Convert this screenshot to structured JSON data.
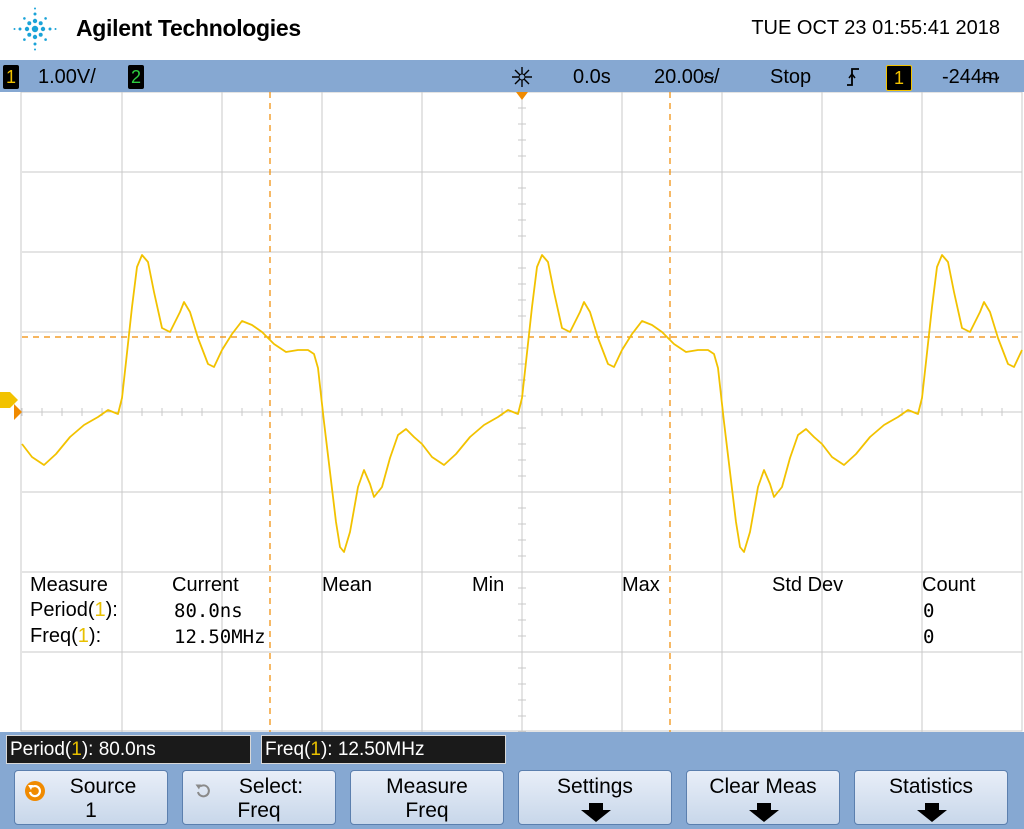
{
  "header": {
    "brand": "Agilent Technologies",
    "datetime": "TUE OCT 23 01:55:41 2018",
    "logo_icon": "agilent-spark-logo"
  },
  "status": {
    "ch1_label": "1",
    "ch1_scale": "1.00V/",
    "ch2_label": "2",
    "time_ref_icon": "time-reference-icon",
    "delay": "0.0s",
    "timebase": "20.00ᵴ/",
    "run_state": "Stop",
    "trigger_icon": "trigger-edge-icon",
    "trigger_source": "1",
    "trigger_level": "-244ᵯ"
  },
  "colors": {
    "accent_bar": "#86a8d2",
    "trace": "#f2c200",
    "cursor": "#f08a00",
    "grid": "#c8c8c8"
  },
  "measurements": {
    "headers": [
      "Measure",
      "Current",
      "Mean",
      "Min",
      "Max",
      "Std Dev",
      "Count"
    ],
    "rows": [
      {
        "name": "Period",
        "channel": "1",
        "current": "80.0ns",
        "count": "0"
      },
      {
        "name": "Freq",
        "channel": "1",
        "current": "12.50MHz",
        "count": "0"
      }
    ]
  },
  "readout": {
    "period": {
      "name": "Period",
      "channel": "1",
      "value": "): 80.0ns"
    },
    "freq": {
      "name": "Freq",
      "channel": "1",
      "value": "): 12.50MHz"
    }
  },
  "softkeys": {
    "source": {
      "line1": "Source",
      "line2": "1",
      "icon": "rotate-knob-icon"
    },
    "select": {
      "line1": "Select:",
      "line2": "Freq",
      "icon": "rotate-knob-icon"
    },
    "measure": {
      "line1": "Measure",
      "line2": "Freq"
    },
    "settings": {
      "line1": "Settings",
      "icon": "submenu-arrow-icon"
    },
    "clear": {
      "line1": "Clear Meas",
      "icon": "submenu-arrow-icon"
    },
    "statistics": {
      "line1": "Statistics",
      "icon": "submenu-arrow-icon"
    }
  }
}
